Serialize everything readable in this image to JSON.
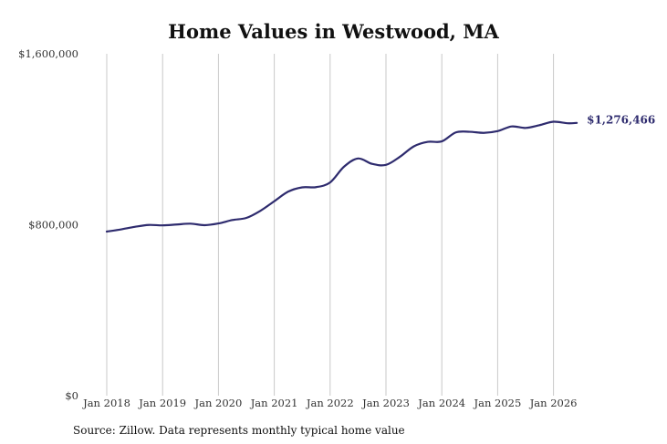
{
  "title": "Home Values in Westwood, MA",
  "source": "Source: Zillow. Data represents monthly typical home value",
  "chart_data": {
    "type": "line",
    "title": "Home Values in Westwood, MA",
    "xlabel": "",
    "ylabel": "",
    "ylim": [
      0,
      1600000
    ],
    "xlim": [
      "2018-01",
      "2026-06"
    ],
    "y_ticks": [
      {
        "value": 0,
        "label": "$0"
      },
      {
        "value": 800000,
        "label": "$800,000"
      },
      {
        "value": 1600000,
        "label": "$1,600,000"
      }
    ],
    "x_ticks": [
      {
        "value": "2018-01",
        "label": "Jan 2018"
      },
      {
        "value": "2019-01",
        "label": "Jan 2019"
      },
      {
        "value": "2020-01",
        "label": "Jan 2020"
      },
      {
        "value": "2021-01",
        "label": "Jan 2021"
      },
      {
        "value": "2022-01",
        "label": "Jan 2022"
      },
      {
        "value": "2023-01",
        "label": "Jan 2023"
      },
      {
        "value": "2024-01",
        "label": "Jan 2024"
      },
      {
        "value": "2025-01",
        "label": "Jan 2025"
      },
      {
        "value": "2026-01",
        "label": "Jan 2026"
      }
    ],
    "grid": "vertical",
    "line_color": "#2e2b6e",
    "end_label": "$1,276,466",
    "series": [
      {
        "points": [
          [
            "2018-01",
            768000
          ],
          [
            "2018-04",
            778000
          ],
          [
            "2018-07",
            790000
          ],
          [
            "2018-10",
            799000
          ],
          [
            "2019-01",
            797000
          ],
          [
            "2019-04",
            801000
          ],
          [
            "2019-07",
            805000
          ],
          [
            "2019-10",
            798000
          ],
          [
            "2020-01",
            806000
          ],
          [
            "2020-04",
            822000
          ],
          [
            "2020-07",
            832000
          ],
          [
            "2020-10",
            865000
          ],
          [
            "2021-01",
            910000
          ],
          [
            "2021-04",
            955000
          ],
          [
            "2021-07",
            975000
          ],
          [
            "2021-10",
            976000
          ],
          [
            "2022-01",
            998000
          ],
          [
            "2022-04",
            1072000
          ],
          [
            "2022-07",
            1110000
          ],
          [
            "2022-10",
            1085000
          ],
          [
            "2023-01",
            1080000
          ],
          [
            "2023-04",
            1118000
          ],
          [
            "2023-07",
            1167000
          ],
          [
            "2023-10",
            1188000
          ],
          [
            "2024-01",
            1190000
          ],
          [
            "2024-04",
            1232000
          ],
          [
            "2024-07",
            1235000
          ],
          [
            "2024-10",
            1230000
          ],
          [
            "2025-01",
            1238000
          ],
          [
            "2025-04",
            1260000
          ],
          [
            "2025-07",
            1253000
          ],
          [
            "2025-10",
            1266000
          ],
          [
            "2026-01",
            1282000
          ],
          [
            "2026-04",
            1275000
          ],
          [
            "2026-06",
            1276466
          ]
        ]
      }
    ]
  }
}
